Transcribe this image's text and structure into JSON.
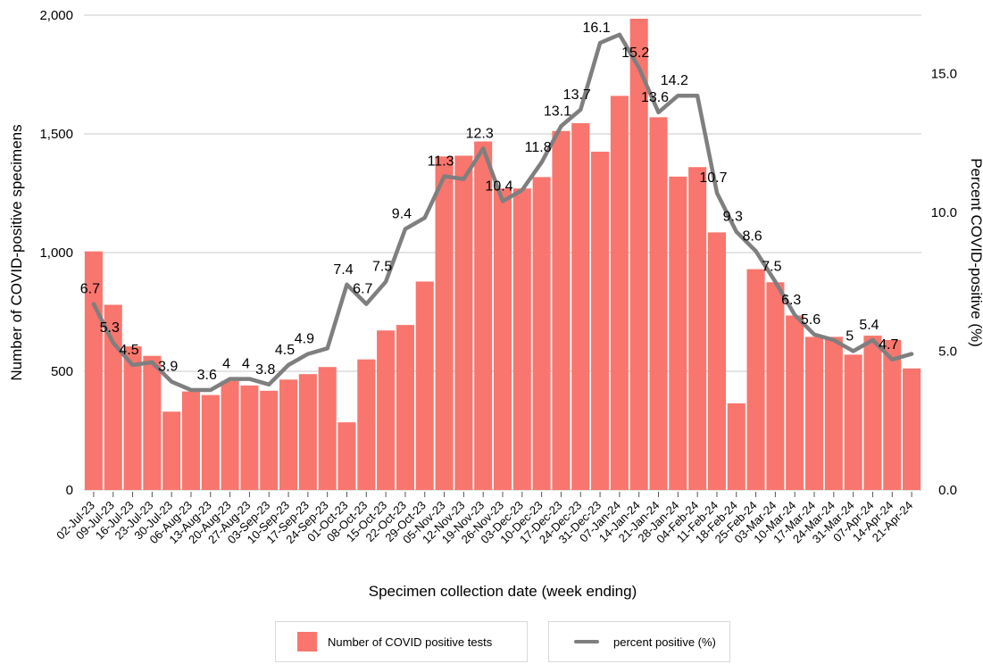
{
  "colors": {
    "bar": "#F8766D",
    "line": "#7F7F7F",
    "grid": "#c8c8c8",
    "text": "#000000"
  },
  "legend": {
    "bar_label": "Number of COVID positive tests",
    "line_label": "percent positive (%)"
  },
  "chart_data": {
    "type": "bar",
    "xlabel": "Specimen collection date (week ending)",
    "ylabel": "Number of COVID-positive specimens",
    "y2label": "Percent COVID-positive (%)",
    "ylim": [
      0,
      2000
    ],
    "yticks": [
      0,
      500,
      1000,
      1500,
      2000
    ],
    "ytick_labels": [
      "0",
      "500",
      "1,000",
      "1,500",
      "2,000"
    ],
    "y2lim": [
      0,
      17.1
    ],
    "y2ticks": [
      0,
      5,
      10,
      15
    ],
    "y2tick_labels": [
      "0.0",
      "5.0",
      "10.0",
      "15.0"
    ],
    "grid": true,
    "legend_position": "bottom",
    "categories": [
      "02-Jul-23",
      "09-Jul-23",
      "16-Jul-23",
      "23-Jul-23",
      "30-Jul-23",
      "06-Aug-23",
      "13-Aug-23",
      "20-Aug-23",
      "27-Aug-23",
      "03-Sep-23",
      "10-Sep-23",
      "17-Sep-23",
      "24-Sep-23",
      "01-Oct-23",
      "08-Oct-23",
      "15-Oct-23",
      "22-Oct-23",
      "29-Oct-23",
      "05-Nov-23",
      "12-Nov-23",
      "19-Nov-23",
      "26-Nov-23",
      "03-Dec-23",
      "10-Dec-23",
      "17-Dec-23",
      "24-Dec-23",
      "31-Dec-23",
      "07-Jan-24",
      "14-Jan-24",
      "21-Jan-24",
      "28-Jan-24",
      "04-Feb-24",
      "11-Feb-24",
      "18-Feb-24",
      "25-Feb-24",
      "03-Mar-24",
      "10-Mar-24",
      "17-Mar-24",
      "24-Mar-24",
      "31-Mar-24",
      "07-Apr-24",
      "14-Apr-24",
      "21-Apr-24"
    ],
    "series": [
      {
        "name": "Number of COVID positive tests",
        "type": "bar",
        "axis": "left",
        "values": [
          1005,
          780,
          605,
          565,
          330,
          415,
          400,
          460,
          440,
          418,
          465,
          488,
          518,
          285,
          550,
          672,
          695,
          878,
          1405,
          1408,
          1468,
          1270,
          1270,
          1318,
          1512,
          1545,
          1425,
          1660,
          1985,
          1570,
          1320,
          1360,
          1085,
          365,
          930,
          875,
          735,
          645,
          645,
          570,
          650,
          632,
          512
        ]
      },
      {
        "name": "percent positive (%)",
        "type": "line",
        "axis": "right",
        "values": [
          6.7,
          5.3,
          4.5,
          4.6,
          3.9,
          3.6,
          3.6,
          4,
          4,
          3.8,
          4.5,
          4.9,
          5.1,
          7.4,
          6.7,
          7.5,
          9.4,
          9.8,
          11.3,
          11.2,
          12.3,
          10.4,
          10.8,
          11.8,
          13.1,
          13.7,
          16.1,
          16.4,
          15.2,
          13.6,
          14.2,
          14.2,
          10.7,
          9.3,
          8.6,
          7.5,
          6.3,
          5.6,
          5.4,
          5,
          5.4,
          4.7,
          4.9
        ]
      }
    ],
    "line_labels": [
      {
        "i": 0,
        "text": "6.7"
      },
      {
        "i": 1,
        "text": "5.3"
      },
      {
        "i": 2,
        "text": "4.5"
      },
      {
        "i": 4,
        "text": "3.9"
      },
      {
        "i": 6,
        "text": "3.6"
      },
      {
        "i": 7,
        "text": "4"
      },
      {
        "i": 8,
        "text": "4"
      },
      {
        "i": 9,
        "text": "3.8"
      },
      {
        "i": 10,
        "text": "4.5"
      },
      {
        "i": 11,
        "text": "4.9"
      },
      {
        "i": 13,
        "text": "7.4"
      },
      {
        "i": 14,
        "text": "6.7"
      },
      {
        "i": 15,
        "text": "7.5"
      },
      {
        "i": 16,
        "text": "9.4"
      },
      {
        "i": 18,
        "text": "11.3"
      },
      {
        "i": 20,
        "text": "12.3"
      },
      {
        "i": 21,
        "text": "10.4"
      },
      {
        "i": 23,
        "text": "11.8"
      },
      {
        "i": 24,
        "text": "13.1"
      },
      {
        "i": 25,
        "text": "13.7"
      },
      {
        "i": 26,
        "text": "16.1"
      },
      {
        "i": 28,
        "text": "15.2"
      },
      {
        "i": 29,
        "text": "13.6"
      },
      {
        "i": 30,
        "text": "14.2"
      },
      {
        "i": 32,
        "text": "10.7"
      },
      {
        "i": 33,
        "text": "9.3"
      },
      {
        "i": 34,
        "text": "8.6"
      },
      {
        "i": 35,
        "text": "7.5"
      },
      {
        "i": 36,
        "text": "6.3"
      },
      {
        "i": 37,
        "text": "5.6"
      },
      {
        "i": 39,
        "text": "5"
      },
      {
        "i": 40,
        "text": "5.4"
      },
      {
        "i": 41,
        "text": "4.7"
      }
    ]
  }
}
